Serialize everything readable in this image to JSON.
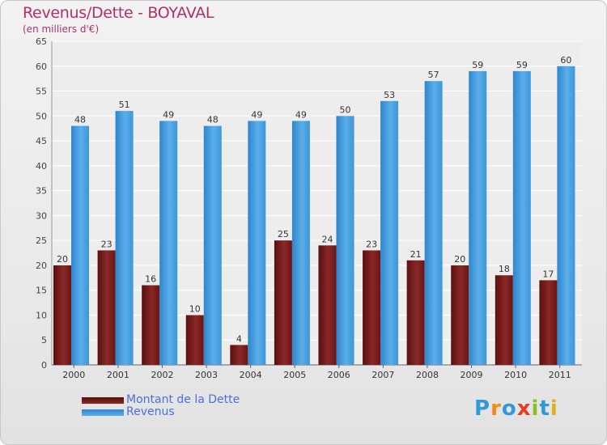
{
  "title": "Revenus/Dette - BOYAVAL",
  "subtitle": "(en milliers d'€)",
  "logo": {
    "text": "Proxiti",
    "colors": [
      "#2f9ad6",
      "#f08a1c",
      "#2f9ad6",
      "#e83c22",
      "#8bbf2a",
      "#2f9ad6",
      "#e0b020"
    ]
  },
  "colors": {
    "dette": "#7a1a1a",
    "revenus": "#3b97dc",
    "title": "#b0306a",
    "legend_text": "#4a6fe0"
  },
  "chart_data": {
    "type": "bar",
    "title": "Revenus/Dette - BOYAVAL",
    "subtitle": "(en milliers d'€)",
    "categories": [
      "2000",
      "2001",
      "2002",
      "2003",
      "2004",
      "2005",
      "2006",
      "2007",
      "2008",
      "2009",
      "2010",
      "2011"
    ],
    "series": [
      {
        "name": "Montant de la Dette",
        "color": "#7a1a1a",
        "values": [
          20,
          23,
          16,
          10,
          4,
          25,
          24,
          23,
          21,
          20,
          18,
          17
        ]
      },
      {
        "name": "Revenus",
        "color": "#3b97dc",
        "values": [
          48,
          51,
          49,
          48,
          49,
          49,
          50,
          53,
          57,
          59,
          59,
          60
        ]
      }
    ],
    "ylim": [
      0,
      65
    ],
    "yticks": [
      0,
      5,
      10,
      15,
      20,
      25,
      30,
      35,
      40,
      45,
      50,
      55,
      60,
      65
    ],
    "grid": true,
    "legend": "bottom-left",
    "data_labels": true
  }
}
